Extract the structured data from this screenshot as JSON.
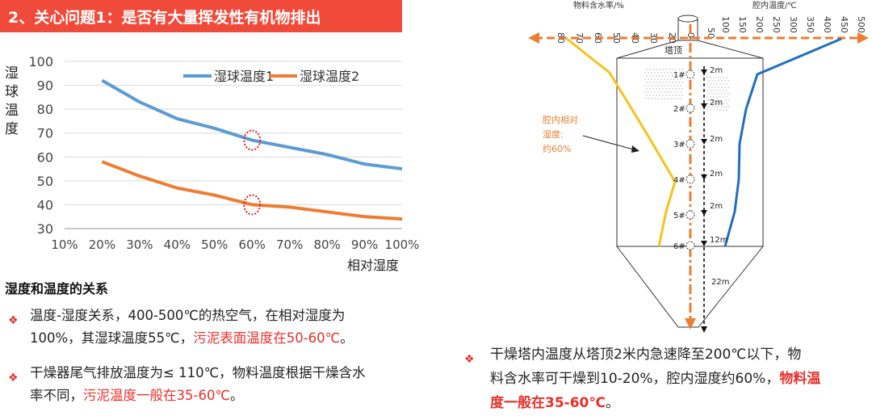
{
  "title": "2、关心问题1：是否有大量挥发性有机物排出",
  "left_chart": {
    "ylabel": "湿球温度",
    "xlabel": "相对湿度",
    "yticks": [
      "100",
      "90",
      "80",
      "70",
      "60",
      "50",
      "40",
      "30"
    ],
    "xticks": [
      "10%",
      "20%",
      "30%",
      "40%",
      "50%",
      "60%",
      "70%",
      "80%",
      "90%",
      "100%"
    ],
    "legend": [
      "湿球温度1",
      "湿球温度2"
    ]
  },
  "chart_data": {
    "type": "line",
    "categories": [
      "20%",
      "30%",
      "40%",
      "50%",
      "60%",
      "70%",
      "80%",
      "90%",
      "100%"
    ],
    "series": [
      {
        "name": "湿球温度1",
        "values": [
          92,
          83,
          76,
          72,
          67,
          64,
          61,
          57,
          55
        ],
        "color": "#5b9bd5"
      },
      {
        "name": "湿球温度2",
        "values": [
          58,
          52,
          47,
          44,
          40,
          39,
          37,
          35,
          34
        ],
        "color": "#ed7d31"
      }
    ],
    "ylim": [
      30,
      100
    ],
    "xlabel": "相对湿度",
    "ylabel": "湿球温度"
  },
  "section": {
    "heading": "湿度和温度的关系",
    "b1_l1": "温度-湿度关系，400-500℃的热空气，在相对湿度为",
    "b1_l2a": "100%，其湿球温度55℃，",
    "b1_l2b": "污泥表面温度在50-60℃",
    "b1_l2c": "。",
    "b2_l1": "干燥器尾气排放温度为≤ 110℃，物料温度根据干燥含水",
    "b2_l2a": "率不同，",
    "b2_l2b": "污泥温度一般在35-60℃",
    "b2_l2c": "。"
  },
  "diagram": {
    "moisture_axis_label": "物料含水率/%",
    "temp_axis_label": "腔内温度/℃",
    "moisture_ticks": [
      "80",
      "70",
      "60",
      "50",
      "40",
      "30",
      "20",
      "10",
      "0"
    ],
    "temp_ticks": [
      "0",
      "50",
      "100",
      "150",
      "200",
      "250",
      "300",
      "350",
      "400",
      "450",
      "500"
    ],
    "tower_top": "塔顶",
    "points": [
      "1#",
      "2#",
      "3#",
      "4#",
      "5#",
      "6#"
    ],
    "spacing": [
      "2m",
      "2m",
      "2m",
      "2m",
      "2m",
      "12m",
      "22m"
    ],
    "annotation": "腔内相对\n湿度:\n约60%"
  },
  "right_text": {
    "l1": "干燥塔内温度从塔顶2米内急速降至200℃以下，物",
    "l2a": "料含水率可干燥到10-20%，腔内湿度约60%，",
    "l2b": "物料温",
    "l3": "度一般在35-60℃",
    "l3c": "。"
  }
}
